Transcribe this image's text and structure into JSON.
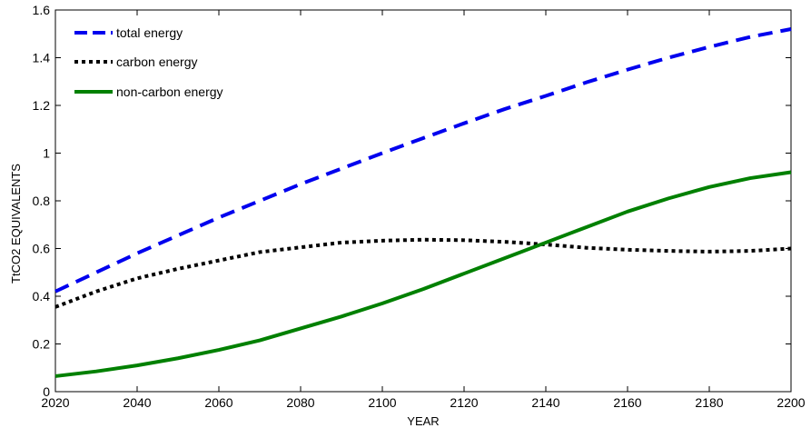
{
  "chart_data": {
    "type": "line",
    "title": "",
    "xlabel": "YEAR",
    "ylabel": "TtCO2 EQUIVALENTS",
    "xlim": [
      2020,
      2200
    ],
    "ylim": [
      0,
      1.6
    ],
    "xticks": [
      "2020",
      "2040",
      "2060",
      "2080",
      "2100",
      "2120",
      "2140",
      "2160",
      "2180",
      "2200"
    ],
    "yticks": [
      "0",
      "0.2",
      "0.4",
      "0.6",
      "0.8",
      "1",
      "1.2",
      "1.4",
      "1.6"
    ],
    "grid": false,
    "legend_position": "top-left",
    "x": [
      2020,
      2030,
      2040,
      2050,
      2060,
      2070,
      2080,
      2090,
      2100,
      2110,
      2120,
      2130,
      2140,
      2150,
      2160,
      2170,
      2180,
      2190,
      2200
    ],
    "series": [
      {
        "name": "total energy",
        "color": "#0000ee",
        "style": "dashed",
        "values": [
          0.42,
          0.5,
          0.58,
          0.655,
          0.73,
          0.8,
          0.87,
          0.935,
          1.0,
          1.063,
          1.125,
          1.185,
          1.24,
          1.297,
          1.35,
          1.4,
          1.445,
          1.487,
          1.52
        ]
      },
      {
        "name": "carbon energy",
        "color": "#000000",
        "style": "dotted",
        "values": [
          0.355,
          0.42,
          0.475,
          0.515,
          0.55,
          0.585,
          0.605,
          0.625,
          0.633,
          0.637,
          0.635,
          0.628,
          0.617,
          0.603,
          0.595,
          0.59,
          0.587,
          0.59,
          0.6
        ]
      },
      {
        "name": "non-carbon energy",
        "color": "#008000",
        "style": "solid",
        "values": [
          0.065,
          0.085,
          0.11,
          0.14,
          0.175,
          0.215,
          0.265,
          0.315,
          0.37,
          0.43,
          0.495,
          0.56,
          0.625,
          0.69,
          0.755,
          0.81,
          0.858,
          0.895,
          0.92
        ]
      }
    ]
  }
}
